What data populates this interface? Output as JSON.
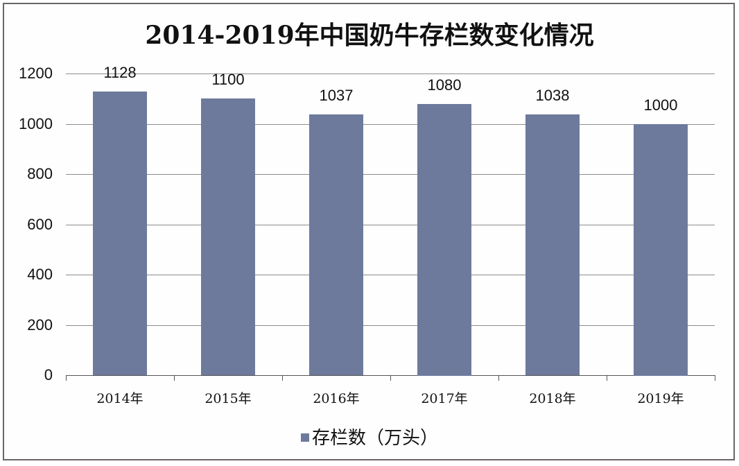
{
  "chart_data": {
    "type": "bar",
    "title": "2014-2019年中国奶牛存栏数变化情况",
    "categories": [
      "2014年",
      "2015年",
      "2016年",
      "2017年",
      "2018年",
      "2019年"
    ],
    "series": [
      {
        "name": "存栏数（万头）",
        "values": [
          1128,
          1100,
          1037,
          1080,
          1038,
          1000
        ],
        "color": "#6d7a9c"
      }
    ],
    "data_labels": [
      "1128",
      "1100",
      "1037",
      "1080",
      "1038",
      "1000"
    ],
    "xlabel": "",
    "ylabel": "",
    "ylim": [
      0,
      1200
    ],
    "yticks": [
      "0",
      "200",
      "400",
      "600",
      "800",
      "1000",
      "1200"
    ],
    "grid": true,
    "legend_position": "bottom"
  },
  "legend": {
    "label": "存栏数（万头）"
  }
}
